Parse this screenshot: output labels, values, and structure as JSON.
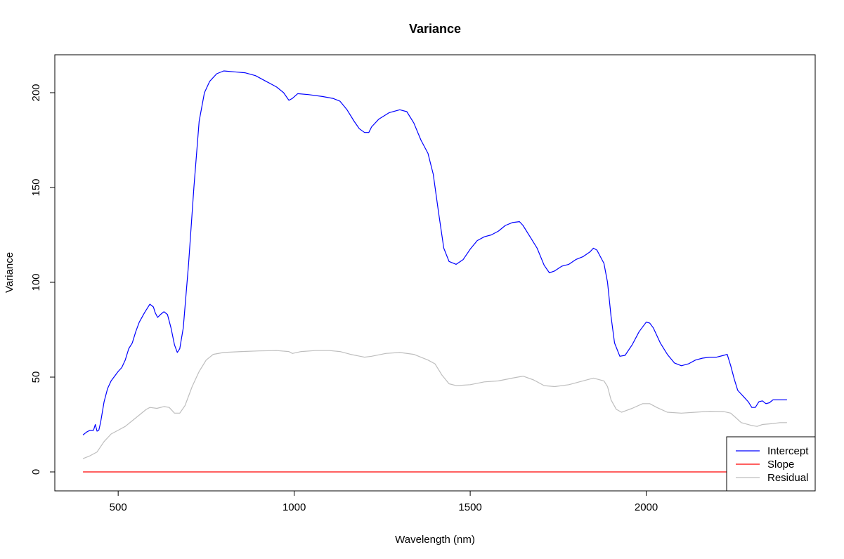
{
  "chart_data": {
    "type": "line",
    "title": "Variance",
    "xlabel": "Wavelength (nm)",
    "ylabel": "Variance",
    "xlim": [
      320,
      2480
    ],
    "ylim": [
      -10,
      220
    ],
    "xticks": [
      500,
      1000,
      1500,
      2000
    ],
    "yticks": [
      0,
      50,
      100,
      150,
      200
    ],
    "grid": false,
    "legend_position": "bottom-right",
    "series": [
      {
        "name": "Intercept",
        "color": "#0000ff",
        "points": [
          [
            400,
            19.5
          ],
          [
            410,
            21
          ],
          [
            420,
            22
          ],
          [
            430,
            22
          ],
          [
            435,
            25
          ],
          [
            440,
            21.5
          ],
          [
            445,
            22
          ],
          [
            450,
            26
          ],
          [
            460,
            37
          ],
          [
            470,
            44
          ],
          [
            480,
            48
          ],
          [
            500,
            53
          ],
          [
            510,
            55
          ],
          [
            520,
            59
          ],
          [
            530,
            65
          ],
          [
            540,
            68
          ],
          [
            550,
            74
          ],
          [
            560,
            79
          ],
          [
            575,
            84
          ],
          [
            590,
            88.5
          ],
          [
            600,
            87
          ],
          [
            605,
            84
          ],
          [
            612,
            81.5
          ],
          [
            620,
            83
          ],
          [
            630,
            84.5
          ],
          [
            640,
            83
          ],
          [
            650,
            76
          ],
          [
            660,
            67
          ],
          [
            668,
            63
          ],
          [
            675,
            65
          ],
          [
            685,
            76
          ],
          [
            700,
            110
          ],
          [
            715,
            150
          ],
          [
            730,
            185
          ],
          [
            745,
            200
          ],
          [
            760,
            206
          ],
          [
            780,
            210
          ],
          [
            800,
            211.5
          ],
          [
            830,
            211
          ],
          [
            860,
            210.5
          ],
          [
            890,
            209
          ],
          [
            920,
            206
          ],
          [
            950,
            203
          ],
          [
            970,
            200
          ],
          [
            985,
            196
          ],
          [
            995,
            197
          ],
          [
            1010,
            199.5
          ],
          [
            1040,
            199
          ],
          [
            1080,
            198
          ],
          [
            1110,
            197
          ],
          [
            1130,
            195.5
          ],
          [
            1150,
            191
          ],
          [
            1170,
            185
          ],
          [
            1185,
            181
          ],
          [
            1200,
            179
          ],
          [
            1212,
            179
          ],
          [
            1220,
            182
          ],
          [
            1240,
            186
          ],
          [
            1270,
            189.5
          ],
          [
            1300,
            191
          ],
          [
            1320,
            190
          ],
          [
            1340,
            184
          ],
          [
            1360,
            175
          ],
          [
            1380,
            168
          ],
          [
            1395,
            157
          ],
          [
            1410,
            137
          ],
          [
            1425,
            118
          ],
          [
            1440,
            111
          ],
          [
            1460,
            109.5
          ],
          [
            1480,
            112
          ],
          [
            1500,
            117.5
          ],
          [
            1520,
            122
          ],
          [
            1540,
            124
          ],
          [
            1560,
            125
          ],
          [
            1580,
            127
          ],
          [
            1600,
            130
          ],
          [
            1620,
            131.5
          ],
          [
            1640,
            132
          ],
          [
            1650,
            130
          ],
          [
            1670,
            124
          ],
          [
            1690,
            118
          ],
          [
            1710,
            109
          ],
          [
            1725,
            105
          ],
          [
            1740,
            106
          ],
          [
            1760,
            108.5
          ],
          [
            1780,
            109.5
          ],
          [
            1800,
            112
          ],
          [
            1820,
            113.5
          ],
          [
            1840,
            116
          ],
          [
            1850,
            118
          ],
          [
            1860,
            117
          ],
          [
            1880,
            110
          ],
          [
            1890,
            100
          ],
          [
            1900,
            82
          ],
          [
            1910,
            68
          ],
          [
            1925,
            61
          ],
          [
            1940,
            61.5
          ],
          [
            1960,
            67
          ],
          [
            1980,
            74
          ],
          [
            2000,
            79
          ],
          [
            2010,
            78.5
          ],
          [
            2020,
            76
          ],
          [
            2040,
            68
          ],
          [
            2060,
            62
          ],
          [
            2080,
            57.5
          ],
          [
            2100,
            56
          ],
          [
            2120,
            57
          ],
          [
            2140,
            59
          ],
          [
            2160,
            60
          ],
          [
            2180,
            60.5
          ],
          [
            2200,
            60.5
          ],
          [
            2220,
            61.5
          ],
          [
            2230,
            62
          ],
          [
            2240,
            56
          ],
          [
            2250,
            49
          ],
          [
            2260,
            43
          ],
          [
            2280,
            39
          ],
          [
            2290,
            37
          ],
          [
            2300,
            34
          ],
          [
            2310,
            34
          ],
          [
            2320,
            37
          ],
          [
            2330,
            37.5
          ],
          [
            2340,
            36
          ],
          [
            2350,
            36.5
          ],
          [
            2360,
            38
          ],
          [
            2380,
            38
          ],
          [
            2400,
            38
          ]
        ]
      },
      {
        "name": "Slope",
        "color": "#ff0000",
        "points": [
          [
            400,
            0
          ],
          [
            2400,
            0
          ]
        ]
      },
      {
        "name": "Residual",
        "color": "#bebebe",
        "points": [
          [
            400,
            7
          ],
          [
            420,
            8.5
          ],
          [
            440,
            10.5
          ],
          [
            460,
            16
          ],
          [
            480,
            20
          ],
          [
            500,
            22
          ],
          [
            520,
            24
          ],
          [
            540,
            27
          ],
          [
            560,
            30
          ],
          [
            580,
            33
          ],
          [
            590,
            34
          ],
          [
            610,
            33.5
          ],
          [
            630,
            34.5
          ],
          [
            645,
            34
          ],
          [
            660,
            31
          ],
          [
            675,
            31
          ],
          [
            690,
            35
          ],
          [
            710,
            45
          ],
          [
            730,
            53
          ],
          [
            750,
            59
          ],
          [
            770,
            62
          ],
          [
            800,
            63
          ],
          [
            850,
            63.5
          ],
          [
            900,
            63.8
          ],
          [
            950,
            64
          ],
          [
            985,
            63.5
          ],
          [
            995,
            62.5
          ],
          [
            1020,
            63.5
          ],
          [
            1060,
            64
          ],
          [
            1100,
            64
          ],
          [
            1130,
            63.5
          ],
          [
            1160,
            62
          ],
          [
            1200,
            60.5
          ],
          [
            1220,
            61
          ],
          [
            1260,
            62.5
          ],
          [
            1300,
            63
          ],
          [
            1340,
            62
          ],
          [
            1380,
            59
          ],
          [
            1400,
            57
          ],
          [
            1420,
            51
          ],
          [
            1440,
            46.5
          ],
          [
            1460,
            45.5
          ],
          [
            1500,
            46
          ],
          [
            1540,
            47.5
          ],
          [
            1580,
            48
          ],
          [
            1620,
            49.5
          ],
          [
            1650,
            50.5
          ],
          [
            1680,
            48.5
          ],
          [
            1710,
            45.5
          ],
          [
            1740,
            45
          ],
          [
            1780,
            46
          ],
          [
            1820,
            48
          ],
          [
            1850,
            49.5
          ],
          [
            1880,
            48
          ],
          [
            1890,
            45
          ],
          [
            1900,
            38
          ],
          [
            1915,
            33
          ],
          [
            1930,
            31.5
          ],
          [
            1960,
            33.5
          ],
          [
            1990,
            36
          ],
          [
            2010,
            36
          ],
          [
            2030,
            34
          ],
          [
            2060,
            31.5
          ],
          [
            2100,
            31
          ],
          [
            2140,
            31.5
          ],
          [
            2180,
            32
          ],
          [
            2220,
            31.8
          ],
          [
            2240,
            31
          ],
          [
            2255,
            28.5
          ],
          [
            2270,
            26
          ],
          [
            2300,
            24.5
          ],
          [
            2315,
            24
          ],
          [
            2330,
            25
          ],
          [
            2360,
            25.5
          ],
          [
            2380,
            26
          ],
          [
            2400,
            26
          ]
        ]
      }
    ]
  }
}
